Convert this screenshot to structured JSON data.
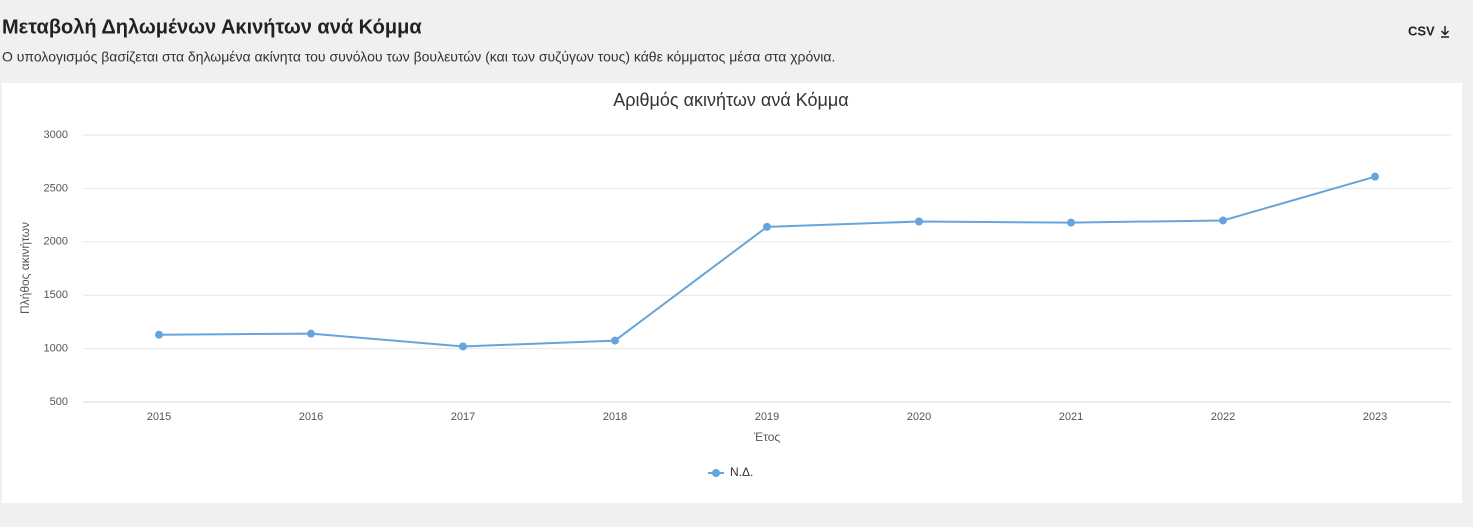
{
  "header": {
    "title": "Μεταβολή Δηλωμένων Ακινήτων ανά Κόμμα",
    "subtitle": "Ο υπολογισμός βασίζεται στα δηλωμένα ακίνητα του συνόλου των βουλευτών (και των συζύγων τους) κάθε κόμματος μέσα στα χρόνια.",
    "download": "CSV"
  },
  "chart_data": {
    "type": "line",
    "title": "Αριθμός ακινήτων ανά Κόμμα",
    "x_label": "Έτος",
    "y_label": "Πλήθος ακινήτων",
    "categories": [
      "2015",
      "2016",
      "2017",
      "2018",
      "2019",
      "2020",
      "2021",
      "2022",
      "2023"
    ],
    "series": [
      {
        "name": "Ν.Δ.",
        "color": "#68a4dc",
        "values": [
          1130,
          1140,
          1020,
          1075,
          2140,
          2190,
          2180,
          2200,
          2610
        ]
      }
    ],
    "ylim": [
      500,
      3000
    ],
    "yticks": [
      500,
      1000,
      1500,
      2000,
      2500,
      3000
    ],
    "grid": true,
    "legend": "bottom"
  }
}
